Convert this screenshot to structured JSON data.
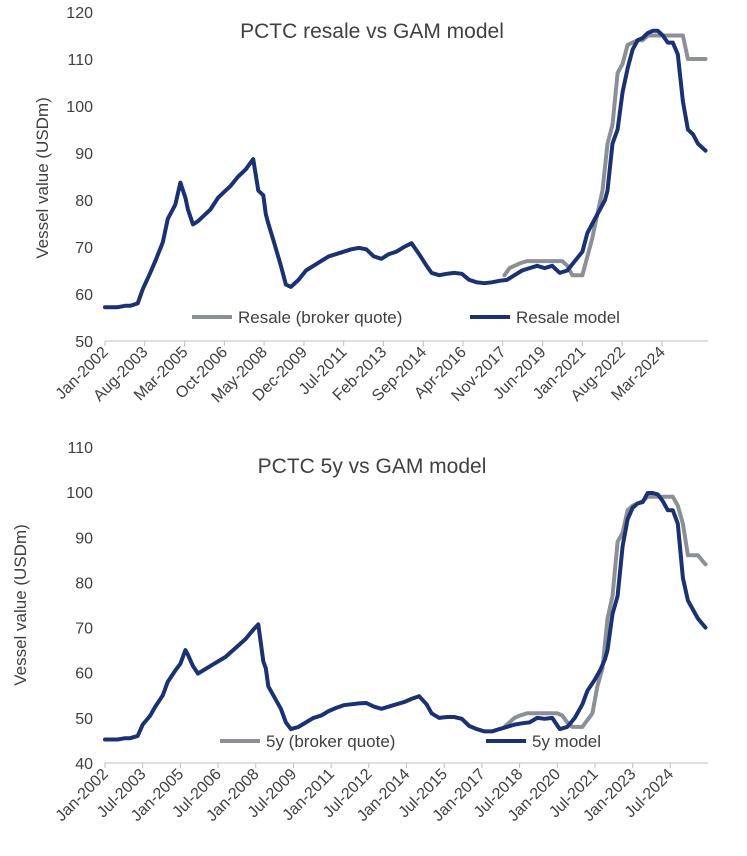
{
  "chart_data": [
    {
      "type": "line",
      "title": "PCTC resale vs GAM model",
      "ylabel": "Vessel value (USDm)",
      "xlabel": "",
      "ylim": [
        50,
        120
      ],
      "yticks": [
        50,
        60,
        70,
        80,
        90,
        100,
        110,
        120
      ],
      "xlim": [
        2002.0,
        2026.0
      ],
      "xtick_labels": [
        "Jan-2002",
        "Aug-2003",
        "Mar-2005",
        "Oct-2006",
        "May-2008",
        "Dec-2009",
        "Jul-2011",
        "Feb-2013",
        "Sep-2014",
        "Apr-2016",
        "Nov-2017",
        "Jun-2019",
        "Jan-2021",
        "Aug-2022",
        "Mar-2024"
      ],
      "xtick_values": [
        2002.0,
        2003.58,
        2005.17,
        2006.75,
        2008.33,
        2009.92,
        2011.5,
        2013.08,
        2014.67,
        2016.25,
        2017.83,
        2019.42,
        2021.0,
        2022.58,
        2024.17
      ],
      "grid": false,
      "legend_position": "bottom-center",
      "series": [
        {
          "name": "Resale (broker quote)",
          "color": "#8b8f96",
          "x": [
            2017.9,
            2018.1,
            2018.3,
            2018.5,
            2018.8,
            2019.0,
            2019.3,
            2019.5,
            2019.8,
            2020.0,
            2020.2,
            2020.4,
            2020.6,
            2020.8,
            2021.0,
            2021.2,
            2021.4,
            2021.6,
            2021.8,
            2022.0,
            2022.2,
            2022.4,
            2022.6,
            2022.8,
            2023.0,
            2023.2,
            2023.4,
            2023.6,
            2023.8,
            2024.0,
            2024.2,
            2024.4,
            2024.6,
            2024.8,
            2025.0,
            2025.2,
            2025.4,
            2025.6,
            2025.9
          ],
          "y": [
            64,
            65.5,
            66,
            66.5,
            67,
            67,
            67,
            67,
            67,
            67,
            67,
            66,
            64,
            64,
            64,
            68,
            72,
            77,
            82,
            92,
            96,
            107,
            109,
            113,
            113.5,
            114,
            114,
            115,
            115,
            115,
            115,
            115,
            115,
            115,
            115,
            110,
            110,
            110,
            110
          ]
        },
        {
          "name": "Resale model",
          "color": "#1a3272",
          "x": [
            2002.0,
            2002.5,
            2002.8,
            2003.0,
            2003.3,
            2003.5,
            2003.8,
            2004.0,
            2004.3,
            2004.5,
            2004.8,
            2005.0,
            2005.2,
            2005.3,
            2005.5,
            2005.7,
            2005.9,
            2006.2,
            2006.5,
            2006.8,
            2007.0,
            2007.3,
            2007.6,
            2007.9,
            2008.1,
            2008.3,
            2008.4,
            2008.5,
            2008.7,
            2009.0,
            2009.2,
            2009.4,
            2009.7,
            2010.0,
            2010.3,
            2010.6,
            2010.9,
            2011.2,
            2011.5,
            2011.8,
            2012.1,
            2012.4,
            2012.7,
            2013.0,
            2013.3,
            2013.6,
            2013.9,
            2014.2,
            2014.5,
            2014.8,
            2015.0,
            2015.3,
            2015.6,
            2015.9,
            2016.2,
            2016.5,
            2016.8,
            2017.1,
            2017.4,
            2017.7,
            2018.0,
            2018.3,
            2018.6,
            2018.9,
            2019.2,
            2019.5,
            2019.8,
            2020.1,
            2020.4,
            2020.7,
            2021.0,
            2021.2,
            2021.5,
            2021.7,
            2021.9,
            2022.0,
            2022.2,
            2022.4,
            2022.6,
            2022.8,
            2023.0,
            2023.2,
            2023.4,
            2023.6,
            2023.8,
            2024.0,
            2024.2,
            2024.4,
            2024.6,
            2024.8,
            2025.0,
            2025.2,
            2025.4,
            2025.6,
            2025.9
          ],
          "y": [
            57.2,
            57.2,
            57.5,
            57.5,
            58,
            61,
            64.5,
            67,
            71,
            76,
            79,
            83.7,
            80.5,
            78,
            74.8,
            75.5,
            76.5,
            78,
            80.5,
            82,
            83,
            85,
            86.5,
            88.7,
            82,
            81,
            77,
            75,
            71.5,
            66,
            62,
            61.5,
            63,
            65,
            66,
            67,
            68,
            68.5,
            69,
            69.5,
            69.8,
            69.5,
            68,
            67.5,
            68.5,
            69,
            70,
            70.8,
            68.5,
            66,
            64.5,
            64,
            64.3,
            64.5,
            64.3,
            63,
            62.5,
            62.3,
            62.5,
            62.8,
            63,
            64,
            65,
            65.5,
            66,
            65.5,
            66,
            64.5,
            65,
            67,
            69,
            73,
            76,
            78,
            80,
            82,
            92,
            95,
            103,
            108,
            112,
            114,
            114.5,
            115.5,
            116,
            116,
            115,
            113.5,
            113.5,
            111,
            101,
            95,
            94,
            92,
            90.5
          ]
        }
      ]
    },
    {
      "type": "line",
      "title": "PCTC 5y vs GAM model",
      "ylabel": "Vessel value (USDm)",
      "xlabel": "",
      "ylim": [
        40,
        110
      ],
      "yticks": [
        40,
        50,
        60,
        70,
        80,
        90,
        100,
        110
      ],
      "xlim": [
        2002.0,
        2026.0
      ],
      "xtick_labels": [
        "Jan-2002",
        "Jul-2003",
        "Jan-2005",
        "Jul-2006",
        "Jan-2008",
        "Jul-2009",
        "Jan-2011",
        "Jul-2012",
        "Jan-2014",
        "Jul-2015",
        "Jan-2017",
        "Jul-2018",
        "Jan-2020",
        "Jul-2021",
        "Jan-2023",
        "Jul-2024"
      ],
      "xtick_values": [
        2002.0,
        2003.5,
        2005.0,
        2006.5,
        2008.0,
        2009.5,
        2011.0,
        2012.5,
        2014.0,
        2015.5,
        2017.0,
        2018.5,
        2020.0,
        2021.5,
        2023.0,
        2024.5
      ],
      "grid": false,
      "legend_position": "bottom-center",
      "series": [
        {
          "name": "5y (broker quote)",
          "color": "#8b8f96",
          "x": [
            2017.9,
            2018.1,
            2018.3,
            2018.5,
            2018.8,
            2019.0,
            2019.3,
            2019.5,
            2019.8,
            2020.0,
            2020.2,
            2020.4,
            2020.6,
            2020.8,
            2021.0,
            2021.2,
            2021.4,
            2021.6,
            2021.8,
            2022.0,
            2022.2,
            2022.4,
            2022.6,
            2022.8,
            2023.0,
            2023.2,
            2023.4,
            2023.6,
            2023.8,
            2024.0,
            2024.2,
            2024.4,
            2024.6,
            2024.8,
            2025.0,
            2025.2,
            2025.4,
            2025.6,
            2025.9
          ],
          "y": [
            48,
            49,
            50,
            50.5,
            51,
            51,
            51,
            51,
            51,
            51,
            50.5,
            49,
            48,
            48,
            48,
            49.5,
            51,
            57,
            61,
            72,
            77,
            89,
            91,
            96,
            97,
            97.5,
            98,
            99,
            99,
            99,
            99,
            99,
            99,
            97,
            93,
            86,
            86,
            86,
            84
          ]
        },
        {
          "name": "5y model",
          "color": "#1a3272",
          "x": [
            2002.0,
            2002.5,
            2002.8,
            2003.0,
            2003.3,
            2003.5,
            2003.8,
            2004.0,
            2004.3,
            2004.5,
            2004.8,
            2005.0,
            2005.2,
            2005.3,
            2005.5,
            2005.7,
            2005.9,
            2006.2,
            2006.5,
            2006.8,
            2007.0,
            2007.3,
            2007.6,
            2007.9,
            2008.1,
            2008.3,
            2008.4,
            2008.5,
            2008.7,
            2009.0,
            2009.2,
            2009.4,
            2009.7,
            2010.0,
            2010.3,
            2010.6,
            2010.9,
            2011.2,
            2011.5,
            2011.8,
            2012.1,
            2012.4,
            2012.7,
            2013.0,
            2013.3,
            2013.6,
            2013.9,
            2014.2,
            2014.5,
            2014.8,
            2015.0,
            2015.3,
            2015.6,
            2015.9,
            2016.2,
            2016.5,
            2016.8,
            2017.1,
            2017.4,
            2017.7,
            2018.0,
            2018.3,
            2018.6,
            2018.9,
            2019.2,
            2019.5,
            2019.8,
            2020.1,
            2020.4,
            2020.7,
            2021.0,
            2021.2,
            2021.5,
            2021.7,
            2021.9,
            2022.0,
            2022.2,
            2022.4,
            2022.6,
            2022.8,
            2023.0,
            2023.2,
            2023.4,
            2023.6,
            2023.8,
            2024.0,
            2024.2,
            2024.4,
            2024.6,
            2024.8,
            2025.0,
            2025.2,
            2025.4,
            2025.6,
            2025.9
          ],
          "y": [
            45.2,
            45.2,
            45.5,
            45.5,
            46,
            48.5,
            50.5,
            52.5,
            55,
            58,
            60.5,
            62,
            65,
            64,
            61.5,
            59.8,
            60.5,
            61.5,
            62.5,
            63.5,
            64.5,
            66,
            67.5,
            69.5,
            70.7,
            62.5,
            61,
            57,
            55,
            52,
            49,
            47.5,
            48,
            49,
            50,
            50.5,
            51.5,
            52.2,
            52.8,
            53,
            53.2,
            53.3,
            52.5,
            52,
            52.5,
            53,
            53.5,
            54.2,
            54.8,
            53,
            51,
            50,
            50.2,
            50.2,
            49.8,
            48.2,
            47.5,
            47,
            47,
            47.5,
            48,
            48.5,
            48.8,
            49,
            50,
            49.8,
            50,
            47.5,
            48,
            50,
            53,
            56,
            58.5,
            60.5,
            63,
            65,
            73,
            77,
            88,
            94,
            96.5,
            97.5,
            97.8,
            99.8,
            99.8,
            99.5,
            98,
            96,
            96,
            93,
            81,
            76,
            74,
            72,
            70
          ]
        }
      ]
    }
  ]
}
